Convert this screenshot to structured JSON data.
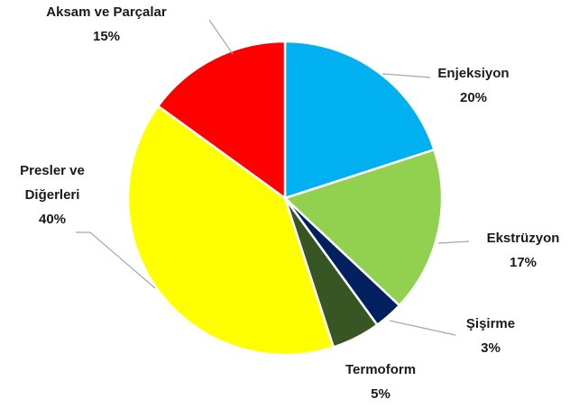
{
  "chart_data": {
    "type": "pie",
    "categories": [
      "Enjeksiyon",
      "Ekstrüzyon",
      "Şişirme",
      "Termoform",
      "Presler ve Diğerleri",
      "Aksam ve Parçalar"
    ],
    "values": [
      20,
      17,
      3,
      5,
      40,
      15
    ],
    "value_labels": [
      "20%",
      "17%",
      "3%",
      "5%",
      "40%",
      "15%"
    ],
    "colors": [
      "#00b0f0",
      "#92d050",
      "#002060",
      "#375623",
      "#ffff00",
      "#ff0000"
    ]
  }
}
